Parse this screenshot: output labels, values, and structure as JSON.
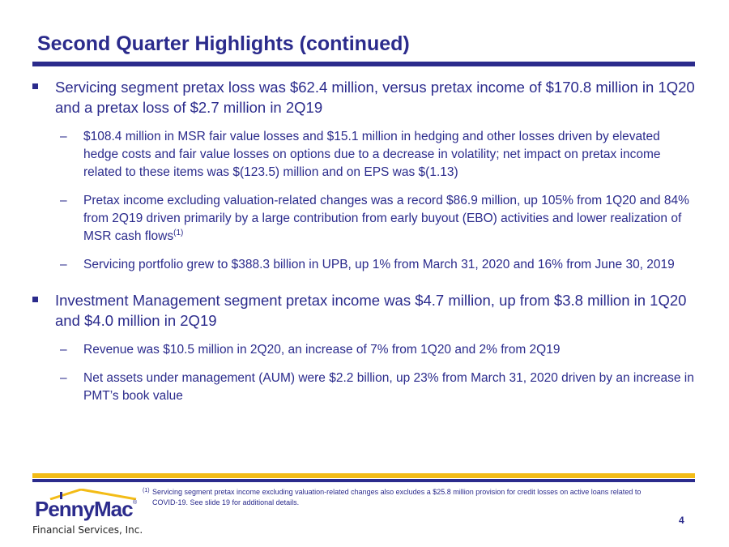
{
  "title": "Second Quarter Highlights (continued)",
  "bullets": [
    {
      "text": "Servicing segment pretax loss was $62.4 million, versus pretax income of $170.8 million in 1Q20 and a pretax loss of $2.7 million in 2Q19",
      "subs": [
        {
          "text": "$108.4 million in MSR fair value losses and $15.1 million in hedging and other losses driven by elevated hedge costs and fair value losses on options due to a decrease in volatility; net impact on pretax income related to these items was $(123.5) million and on EPS was $(1.13)"
        },
        {
          "text": "Pretax income excluding valuation-related changes was a record $86.9 million, up 105% from 1Q20 and 84% from 2Q19 driven primarily by a large contribution from early buyout (EBO) activities and lower realization of MSR cash flows",
          "sup": "(1)"
        },
        {
          "text": "Servicing portfolio grew to $388.3 billion in UPB, up 1% from March 31, 2020 and 16% from June 30, 2019"
        }
      ]
    },
    {
      "text": "Investment Management segment pretax income was $4.7 million, up from $3.8 million in 1Q20 and $4.0 million in 2Q19",
      "subs": [
        {
          "text": "Revenue was $10.5 million in 2Q20, an increase of 7% from 1Q20 and 2% from 2Q19"
        },
        {
          "text": "Net assets under management (AUM) were $2.2 billion, up 23% from March 31, 2020 driven by an increase in PMT’s book value"
        }
      ]
    }
  ],
  "footnote": {
    "mark": "(1)",
    "text": "Servicing segment pretax income excluding valuation-related changes also excludes a $25.8 million provision for credit losses on active loans related to COVID-19. See slide 19 for additional details."
  },
  "page_number": "4",
  "logo": {
    "wordmark": "PennyMac",
    "registered": "®",
    "subtitle": "Financial Services, Inc."
  },
  "dash_glyph": "–",
  "colors": {
    "navy": "#2b2b8c",
    "gold": "#f3bc17"
  }
}
